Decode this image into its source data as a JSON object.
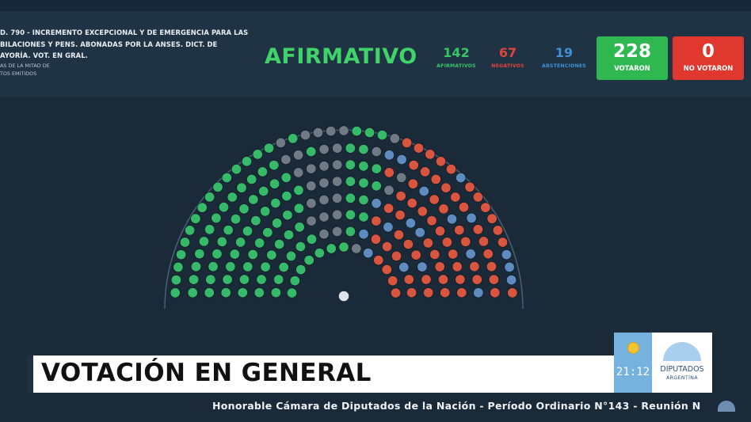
{
  "motion": {
    "line1": "D. 790 - INCREMENTO EXCEPCIONAL Y DE EMERGENCIA PARA LAS",
    "line2": "BILACIONES Y PENS. ABONADAS POR LA ANSES. DICT. DE",
    "line3": "AYORÍA. VOT. EN GRAL.",
    "line4": "AS DE LA MITAD DE",
    "line5": "TOS EMITIDOS"
  },
  "result": "AFIRMATIVO",
  "counts": {
    "afirmativos": {
      "value": "142",
      "label": "AFIRMATIVOS"
    },
    "negativos": {
      "value": "67",
      "label": "NEGATIVOS"
    },
    "abstenciones": {
      "value": "19",
      "label": "ABSTENCIONES"
    }
  },
  "boxes": {
    "votaron": {
      "value": "228",
      "label": "VOTARON"
    },
    "no_votaron": {
      "value": "0",
      "label": "NO VOTARON"
    }
  },
  "hemicycle": {
    "seats_afirmativo": 142,
    "seats_negativo": 67,
    "seats_abstencion": 19,
    "seats_empty": 29,
    "colors": {
      "afirmativo": "#37b96a",
      "negativo": "#d8553f",
      "abstencion": "#5f8cc0",
      "empty": "#707a84",
      "president": "#dfe5ea"
    }
  },
  "banner": "VOTACIÓN EN GENERAL",
  "clock": "21:12",
  "logo": {
    "name": "DIPUTADOS",
    "country": "ARGENTINA"
  },
  "ticker": "Honorable Cámara de Diputados de la Nación - Período Ordinario N°143 - Reunión N"
}
